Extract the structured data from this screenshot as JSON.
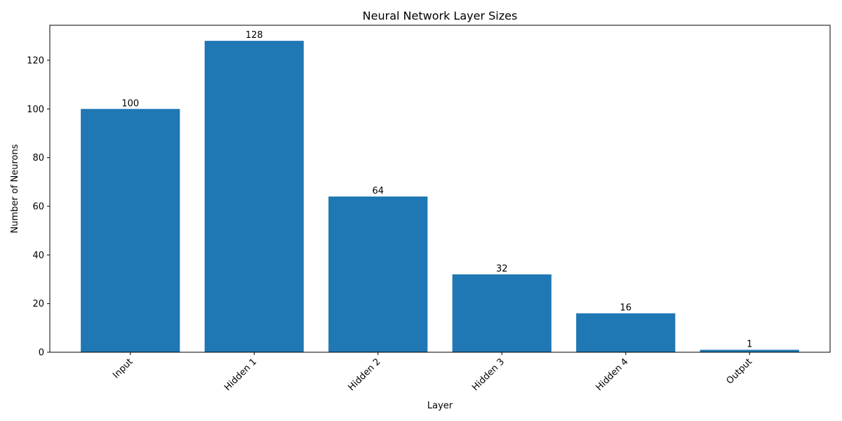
{
  "chart_data": {
    "type": "bar",
    "title": "Neural Network Layer Sizes",
    "xlabel": "Layer",
    "ylabel": "Number of Neurons",
    "categories": [
      "Input",
      "Hidden 1",
      "Hidden 2",
      "Hidden 3",
      "Hidden 4",
      "Output"
    ],
    "values": [
      100,
      128,
      64,
      32,
      16,
      1
    ],
    "data_labels": [
      "100",
      "128",
      "64",
      "32",
      "16",
      "1"
    ],
    "ylim": [
      0,
      134.4
    ],
    "yticks": [
      0,
      20,
      40,
      60,
      80,
      100,
      120
    ],
    "grid": false,
    "legend": "none",
    "bar_color": "#1f77b4",
    "x_tick_rotation_deg": 45
  }
}
